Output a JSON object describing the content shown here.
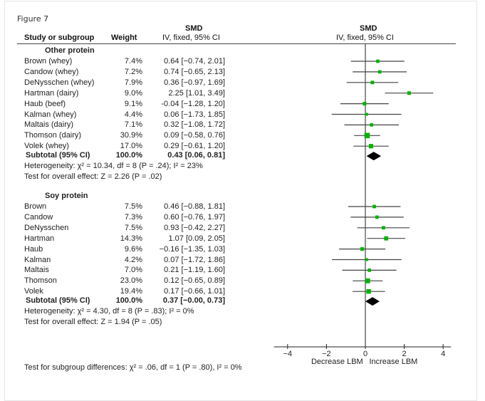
{
  "figure_label": "Figure 7",
  "header": {
    "col_study": "Study or subgroup",
    "col_weight": "Weight",
    "col_smd_title": "SMD",
    "col_smd_sub": "IV, fixed, 95% CI",
    "plot_smd_title": "SMD",
    "plot_smd_sub": "IV, fixed, 95% CI"
  },
  "groups": [
    {
      "name": "Other protein",
      "studies": [
        {
          "name": "Brown (whey)",
          "weight": "7.4%",
          "ci_text": "0.64 [−0.74, 2.01]"
        },
        {
          "name": "Candow (whey)",
          "weight": "7.2%",
          "ci_text": "0.74 [−0.65, 2.13]"
        },
        {
          "name": "DeNysschen (whey)",
          "weight": "7.9%",
          "ci_text": "0.36 [−0.97, 1.69]"
        },
        {
          "name": "Hartman (dairy)",
          "weight": "9.0%",
          "ci_text": "2.25 [1.01, 3.49]"
        },
        {
          "name": "Haub (beef)",
          "weight": "9.1%",
          "ci_text": "-0.04 [−1.28, 1.20]"
        },
        {
          "name": "Kalman (whey)",
          "weight": "4.4%",
          "ci_text": "0.06 [−1.73, 1.85]"
        },
        {
          "name": "Maltais (dairy)",
          "weight": "7.1%",
          "ci_text": "0.32 [−1.08, 1.72]"
        },
        {
          "name": "Thomson (dairy)",
          "weight": "30.9%",
          "ci_text": "0.09 [−0.58, 0.76]"
        },
        {
          "name": "Volek (whey)",
          "weight": "17.0%",
          "ci_text": "0.29 [−0.61, 1.20]"
        }
      ],
      "subtotal": {
        "label": "Subtotal (95% CI)",
        "weight": "100.0%",
        "ci_text": "0.43 [0.06, 0.81]"
      },
      "heterogeneity": "Heterogeneity: χ² = 10.34, df = 8 (P = .24); I² = 23%",
      "overall": "Test for overall effect: Z = 2.26 (P = .02)"
    },
    {
      "name": "Soy protein",
      "studies": [
        {
          "name": "Brown",
          "weight": "7.5%",
          "ci_text": "0.46 [−0.88, 1.81]"
        },
        {
          "name": "Candow",
          "weight": "7.3%",
          "ci_text": "0.60 [−0.76, 1.97]"
        },
        {
          "name": "DeNysschen",
          "weight": "7.5%",
          "ci_text": "0.93 [−0.42, 2.27]"
        },
        {
          "name": "Hartman",
          "weight": "14.3%",
          "ci_text": "1.07 [0.09, 2.05]"
        },
        {
          "name": "Haub",
          "weight": "9.6%",
          "ci_text": "−0.16 [−1.35, 1.03]"
        },
        {
          "name": "Kalman",
          "weight": "4.2%",
          "ci_text": "0.07 [−1.72, 1.86]"
        },
        {
          "name": "Maltais",
          "weight": "7.0%",
          "ci_text": "0.21 [−1.19, 1.60]"
        },
        {
          "name": "Thomson",
          "weight": "23.0%",
          "ci_text": "0.12 [−0.65, 0.89]"
        },
        {
          "name": "Volek",
          "weight": "19.4%",
          "ci_text": "0.17 [−0.66, 1.01]"
        }
      ],
      "subtotal": {
        "label": "Subtotal (95% CI)",
        "weight": "100.0%",
        "ci_text": "0.37 [−0.00, 0.73]"
      },
      "heterogeneity": "Heterogeneity: χ² = 4.30, df = 8 (P = .83); I² = 0%",
      "overall": "Test for overall effect: Z = 1.94 (P = .05)"
    }
  ],
  "footer": "Test for subgroup differences: χ² = .06, df = 1 (P = .80), I² = 0%",
  "colors": {
    "point": "#00b000",
    "diamond": "#000000",
    "line": "#444444"
  },
  "chart_data": {
    "type": "forest",
    "title": "SMD IV, fixed, 95% CI",
    "xlabel_left": "Decrease LBM",
    "xlabel_right": "Increase LBM",
    "xlim": [
      -4.5,
      4.5
    ],
    "xticks": [
      -4,
      -2,
      0,
      2,
      4
    ],
    "xtick_labels": [
      "−4",
      "−2",
      "0",
      "2",
      "4"
    ],
    "series": [
      {
        "name": "Other protein",
        "points": [
          {
            "study": "Brown (whey)",
            "est": 0.64,
            "lo": -0.74,
            "hi": 2.01,
            "weight": 7.4
          },
          {
            "study": "Candow (whey)",
            "est": 0.74,
            "lo": -0.65,
            "hi": 2.13,
            "weight": 7.2
          },
          {
            "study": "DeNysschen (whey)",
            "est": 0.36,
            "lo": -0.97,
            "hi": 1.69,
            "weight": 7.9
          },
          {
            "study": "Hartman (dairy)",
            "est": 2.25,
            "lo": 1.01,
            "hi": 3.49,
            "weight": 9.0
          },
          {
            "study": "Haub (beef)",
            "est": -0.04,
            "lo": -1.28,
            "hi": 1.2,
            "weight": 9.1
          },
          {
            "study": "Kalman (whey)",
            "est": 0.06,
            "lo": -1.73,
            "hi": 1.85,
            "weight": 4.4
          },
          {
            "study": "Maltais (dairy)",
            "est": 0.32,
            "lo": -1.08,
            "hi": 1.72,
            "weight": 7.1
          },
          {
            "study": "Thomson (dairy)",
            "est": 0.09,
            "lo": -0.58,
            "hi": 0.76,
            "weight": 30.9
          },
          {
            "study": "Volek (whey)",
            "est": 0.29,
            "lo": -0.61,
            "hi": 1.2,
            "weight": 17.0
          }
        ],
        "subtotal": {
          "est": 0.43,
          "lo": 0.06,
          "hi": 0.81
        }
      },
      {
        "name": "Soy protein",
        "points": [
          {
            "study": "Brown",
            "est": 0.46,
            "lo": -0.88,
            "hi": 1.81,
            "weight": 7.5
          },
          {
            "study": "Candow",
            "est": 0.6,
            "lo": -0.76,
            "hi": 1.97,
            "weight": 7.3
          },
          {
            "study": "DeNysschen",
            "est": 0.93,
            "lo": -0.42,
            "hi": 2.27,
            "weight": 7.5
          },
          {
            "study": "Hartman",
            "est": 1.07,
            "lo": 0.09,
            "hi": 2.05,
            "weight": 14.3
          },
          {
            "study": "Haub",
            "est": -0.16,
            "lo": -1.35,
            "hi": 1.03,
            "weight": 9.6
          },
          {
            "study": "Kalman",
            "est": 0.07,
            "lo": -1.72,
            "hi": 1.86,
            "weight": 4.2
          },
          {
            "study": "Maltais",
            "est": 0.21,
            "lo": -1.19,
            "hi": 1.6,
            "weight": 7.0
          },
          {
            "study": "Thomson",
            "est": 0.12,
            "lo": -0.65,
            "hi": 0.89,
            "weight": 23.0
          },
          {
            "study": "Volek",
            "est": 0.17,
            "lo": -0.66,
            "hi": 1.01,
            "weight": 19.4
          }
        ],
        "subtotal": {
          "est": 0.37,
          "lo": -0.0,
          "hi": 0.73
        }
      }
    ]
  }
}
